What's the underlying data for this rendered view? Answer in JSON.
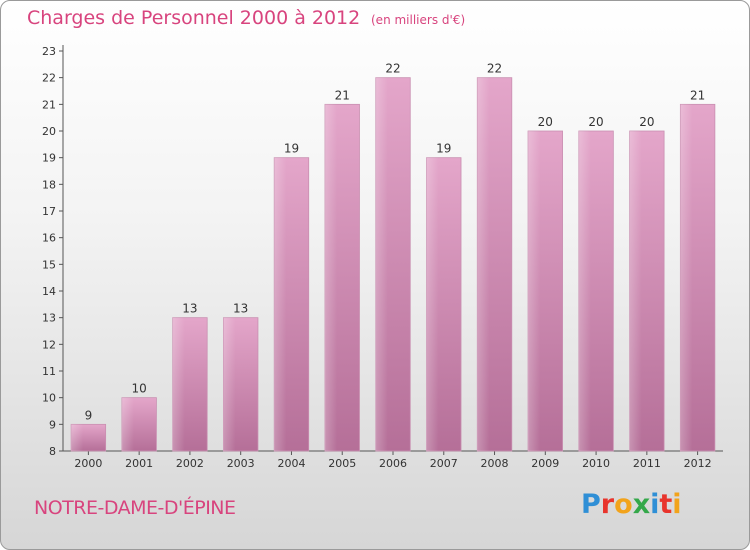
{
  "title": "Charges de Personnel 2000 à 2012",
  "subtitle": "(en milliers d'€)",
  "commune": "NOTRE-DAME-D'ÉPINE",
  "brand": {
    "letters": [
      "P",
      "r",
      "o",
      "x",
      "i",
      "t",
      "i"
    ],
    "colors": [
      "#2f8fd6",
      "#e8342c",
      "#f2a31b",
      "#34a84a",
      "#2f8fd6",
      "#e8342c",
      "#f2a31b"
    ]
  },
  "chart_data": {
    "type": "bar",
    "categories": [
      "2000",
      "2001",
      "2002",
      "2003",
      "2004",
      "2005",
      "2006",
      "2007",
      "2008",
      "2009",
      "2010",
      "2011",
      "2012"
    ],
    "values": [
      9,
      10,
      13,
      13,
      19,
      21,
      22,
      19,
      22,
      20,
      20,
      20,
      21
    ],
    "ylim": [
      8,
      23
    ],
    "yticks": [
      8,
      9,
      10,
      11,
      12,
      13,
      14,
      15,
      16,
      17,
      18,
      19,
      20,
      21,
      22,
      23
    ],
    "grid": false,
    "bar_color": "#d98cb8",
    "text_color": "#d8447e"
  }
}
